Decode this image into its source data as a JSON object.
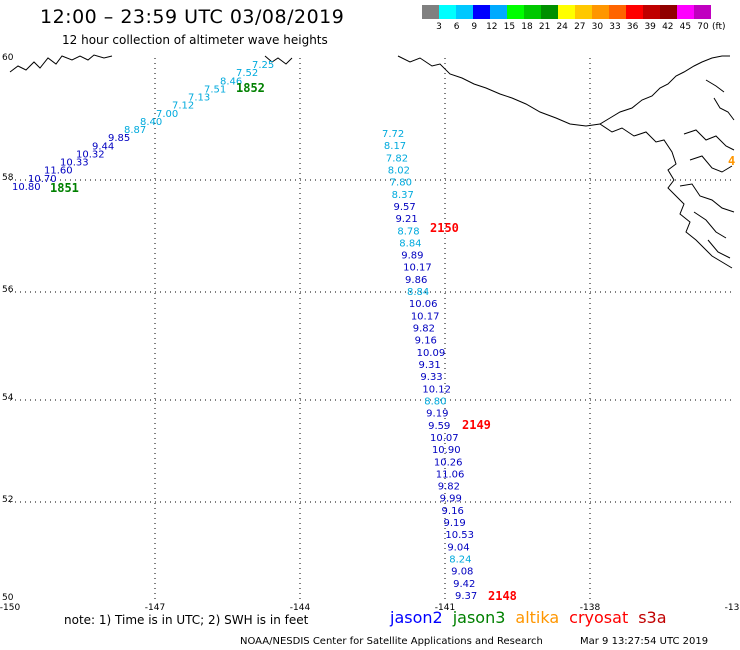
{
  "header": {
    "title": "12:00 – 23:59 UTC 03/08/2019",
    "subtitle": "12 hour collection of altimeter wave heights"
  },
  "legend": {
    "colors": [
      "#808080",
      "#00ffff",
      "#00c8ff",
      "#0000ff",
      "#00aaff",
      "#00ff00",
      "#00c800",
      "#009000",
      "#ffff00",
      "#ffc800",
      "#ff9600",
      "#ff6400",
      "#ff0000",
      "#c00000",
      "#900000",
      "#ff00ff",
      "#c000c0",
      "#ffffff",
      "#ffffff",
      "#000000"
    ],
    "labels": [
      "3",
      "6",
      "9",
      "12",
      "15",
      "18",
      "21",
      "24",
      "27",
      "30",
      "33",
      "36",
      "39",
      "42",
      "45",
      "70"
    ],
    "unit": "(ft)"
  },
  "map": {
    "lon_ticks": [
      "-150",
      "-147",
      "-144",
      "-141",
      "-138",
      "-13"
    ],
    "lat_ticks": [
      "60",
      "58",
      "56",
      "54",
      "52",
      "50"
    ],
    "pass_labels": [
      {
        "text": "1852",
        "color": "#008000"
      },
      {
        "text": "1851",
        "color": "#008000"
      },
      {
        "text": "2150",
        "color": "#ff0000"
      },
      {
        "text": "2149",
        "color": "#ff0000"
      },
      {
        "text": "2148",
        "color": "#ff0000"
      },
      {
        "text": "4",
        "color": "#ff9600"
      }
    ],
    "track_nw": [
      {
        "v": "7.25",
        "c": "#00aadd"
      },
      {
        "v": "7.52",
        "c": "#00aadd"
      },
      {
        "v": "8.46",
        "c": "#00aadd"
      },
      {
        "v": "7.51",
        "c": "#00aadd"
      },
      {
        "v": "7.13",
        "c": "#00aadd"
      },
      {
        "v": "7.12",
        "c": "#00aadd"
      },
      {
        "v": "7.00",
        "c": "#00aadd"
      },
      {
        "v": "8.40",
        "c": "#00aadd"
      },
      {
        "v": "8.87",
        "c": "#00aadd"
      },
      {
        "v": "9.85",
        "c": "#0000c0"
      },
      {
        "v": "9.44",
        "c": "#0000c0"
      },
      {
        "v": "10.32",
        "c": "#0000c0"
      },
      {
        "v": "10.33",
        "c": "#0000c0"
      },
      {
        "v": "11.60",
        "c": "#0000c0"
      },
      {
        "v": "10.70",
        "c": "#0000c0"
      },
      {
        "v": "10.80",
        "c": "#0000c0"
      }
    ],
    "track_main": [
      {
        "v": "7.72",
        "c": "#00aadd"
      },
      {
        "v": "8.17",
        "c": "#00aadd"
      },
      {
        "v": "7.82",
        "c": "#00aadd"
      },
      {
        "v": "8.02",
        "c": "#00aadd"
      },
      {
        "v": "7.80",
        "c": "#00aadd"
      },
      {
        "v": "8.37",
        "c": "#00aadd"
      },
      {
        "v": "9.57",
        "c": "#0000c0"
      },
      {
        "v": "9.21",
        "c": "#0000c0"
      },
      {
        "v": "8.78",
        "c": "#00aadd"
      },
      {
        "v": "8.84",
        "c": "#00aadd"
      },
      {
        "v": "9.89",
        "c": "#0000c0"
      },
      {
        "v": "10.17",
        "c": "#0000c0"
      },
      {
        "v": "9.86",
        "c": "#0000c0"
      },
      {
        "v": "8.84",
        "c": "#00aadd"
      },
      {
        "v": "10.06",
        "c": "#0000c0"
      },
      {
        "v": "10.17",
        "c": "#0000c0"
      },
      {
        "v": "9.82",
        "c": "#0000c0"
      },
      {
        "v": "9.16",
        "c": "#0000c0"
      },
      {
        "v": "10.09",
        "c": "#0000c0"
      },
      {
        "v": "9.31",
        "c": "#0000c0"
      },
      {
        "v": "9.33",
        "c": "#0000c0"
      },
      {
        "v": "10.12",
        "c": "#0000c0"
      },
      {
        "v": "8.80",
        "c": "#00aadd"
      },
      {
        "v": "9.19",
        "c": "#0000c0"
      },
      {
        "v": "9.59",
        "c": "#0000c0"
      },
      {
        "v": "10.07",
        "c": "#0000c0"
      },
      {
        "v": "10.90",
        "c": "#0000c0"
      },
      {
        "v": "10.26",
        "c": "#0000c0"
      },
      {
        "v": "11.06",
        "c": "#0000c0"
      },
      {
        "v": "9.82",
        "c": "#0000c0"
      },
      {
        "v": "9.99",
        "c": "#0000c0"
      },
      {
        "v": "9.16",
        "c": "#0000c0"
      },
      {
        "v": "9.19",
        "c": "#0000c0"
      },
      {
        "v": "10.53",
        "c": "#0000c0"
      },
      {
        "v": "9.04",
        "c": "#0000c0"
      },
      {
        "v": "8.24",
        "c": "#00aadd"
      },
      {
        "v": "9.08",
        "c": "#0000c0"
      },
      {
        "v": "9.42",
        "c": "#0000c0"
      },
      {
        "v": "9.37",
        "c": "#0000c0"
      }
    ]
  },
  "footer": {
    "note": "note:  1) Time is in UTC;  2) SWH is in feet",
    "satellites": [
      {
        "name": "jason2",
        "color": "#0000ff"
      },
      {
        "name": "jason3",
        "color": "#008000"
      },
      {
        "name": "altika",
        "color": "#ff9600"
      },
      {
        "name": "cryosat",
        "color": "#ff0000"
      },
      {
        "name": "s3a",
        "color": "#c00000"
      }
    ],
    "credit": "NOAA/NESDIS Center for Satellite Applications and Research",
    "timestamp": "Mar  9 13:27:54 UTC 2019"
  }
}
